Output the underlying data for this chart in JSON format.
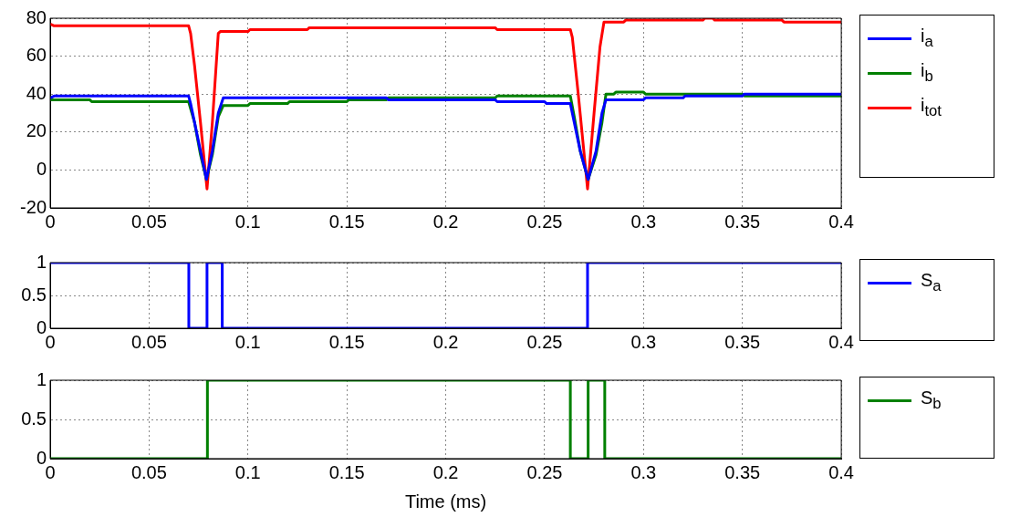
{
  "chart_data": [
    {
      "type": "line",
      "xlim": [
        0,
        0.4
      ],
      "xticks": [
        0,
        0.05,
        0.1,
        0.15,
        0.2,
        0.25,
        0.3,
        0.35,
        0.4
      ],
      "ylim": [
        -20,
        80
      ],
      "yticks": [
        -20,
        0,
        20,
        40,
        60,
        80
      ],
      "grid": true,
      "legend": "right",
      "series": [
        {
          "name": "i$_{a}$",
          "color": "#0000ff",
          "x": [
            0,
            0.002,
            0.07,
            0.071,
            0.073,
            0.076,
            0.079,
            0.082,
            0.085,
            0.0875,
            0.17,
            0.171,
            0.225,
            0.226,
            0.25,
            0.251,
            0.263,
            0.265,
            0.268,
            0.272,
            0.276,
            0.279,
            0.281,
            0.3,
            0.301,
            0.32,
            0.321,
            0.35,
            0.351,
            0.4
          ],
          "values": [
            38,
            39,
            39,
            35,
            25,
            10,
            -5,
            10,
            30,
            38,
            38,
            37,
            37,
            36,
            36,
            35,
            35,
            25,
            10,
            -5,
            10,
            30,
            37,
            37,
            38,
            38,
            39,
            39,
            40,
            40
          ]
        },
        {
          "name": "i$_{b}$",
          "color": "#008000",
          "x": [
            0,
            0.02,
            0.021,
            0.07,
            0.073,
            0.076,
            0.079,
            0.082,
            0.085,
            0.0875,
            0.1,
            0.101,
            0.12,
            0.121,
            0.15,
            0.151,
            0.17,
            0.171,
            0.225,
            0.226,
            0.263,
            0.265,
            0.268,
            0.272,
            0.276,
            0.279,
            0.281,
            0.285,
            0.286,
            0.3,
            0.301,
            0.35,
            0.351,
            0.4
          ],
          "values": [
            37,
            37,
            36,
            36,
            25,
            8,
            -5,
            8,
            28,
            34,
            34,
            35,
            35,
            36,
            36,
            37,
            37,
            38,
            38,
            39,
            39,
            28,
            10,
            -5,
            8,
            25,
            40,
            40,
            41,
            41,
            40,
            40,
            39,
            39
          ]
        },
        {
          "name": "i$_{tot}$",
          "color": "#ff0000",
          "x": [
            0,
            0.002,
            0.07,
            0.071,
            0.073,
            0.076,
            0.0793,
            0.082,
            0.085,
            0.086,
            0.1,
            0.101,
            0.13,
            0.131,
            0.225,
            0.226,
            0.263,
            0.264,
            0.267,
            0.2717,
            0.275,
            0.278,
            0.28,
            0.29,
            0.291,
            0.33,
            0.331,
            0.335,
            0.336,
            0.37,
            0.371,
            0.4
          ],
          "values": [
            77,
            76,
            76,
            72,
            55,
            25,
            -10,
            25,
            72,
            73,
            73,
            74,
            74,
            75,
            75,
            74,
            74,
            70,
            40,
            -10,
            30,
            65,
            78,
            78,
            79,
            79,
            80,
            80,
            79,
            79,
            78,
            78
          ]
        }
      ]
    },
    {
      "type": "step",
      "xlim": [
        0,
        0.4
      ],
      "xticks": [
        0,
        0.05,
        0.1,
        0.15,
        0.2,
        0.25,
        0.3,
        0.35,
        0.4
      ],
      "ylim": [
        0,
        1
      ],
      "yticks": [
        0,
        0.5,
        1
      ],
      "grid": true,
      "legend": "right",
      "series": [
        {
          "name": "S$_{a}$",
          "color": "#0000ff",
          "x": [
            0,
            0.0701,
            0.0793,
            0.087,
            0.2717,
            0.4
          ],
          "values": [
            1,
            0,
            1,
            0,
            1,
            1
          ]
        }
      ]
    },
    {
      "type": "step",
      "xlabel": "Time (ms)",
      "xlim": [
        0,
        0.4
      ],
      "xticks": [
        0,
        0.05,
        0.1,
        0.15,
        0.2,
        0.25,
        0.3,
        0.35,
        0.4
      ],
      "ylim": [
        0,
        1
      ],
      "yticks": [
        0,
        0.5,
        1
      ],
      "grid": true,
      "legend": "right",
      "series": [
        {
          "name": "S$_{b}$",
          "color": "#008000",
          "x": [
            0,
            0.0795,
            0.263,
            0.272,
            0.2804,
            0.4
          ],
          "values": [
            0,
            1,
            0,
            1,
            0,
            0
          ]
        }
      ]
    }
  ]
}
